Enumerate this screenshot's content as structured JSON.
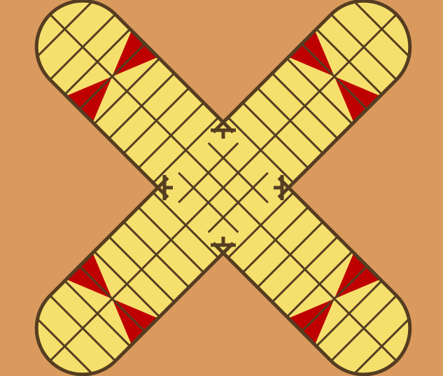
{
  "game": {
    "name": "",
    "board": {
      "arms": [
        "top-left",
        "top-right",
        "bottom-left",
        "bottom-right"
      ],
      "lanes_per_arm": 2,
      "cells_per_lane": 8,
      "center_grid": [
        4,
        4
      ],
      "safe_markers": [
        {
          "arm": "top-left",
          "shape": "bowtie"
        },
        {
          "arm": "top-right",
          "shape": "bowtie"
        },
        {
          "arm": "bottom-left",
          "shape": "bowtie"
        },
        {
          "arm": "bottom-right",
          "shape": "bowtie"
        }
      ]
    },
    "colors": {
      "background": "#DA9A5E",
      "board_fill": "#F6E06D",
      "outline": "#553D21",
      "marker": "#BE0000"
    }
  }
}
